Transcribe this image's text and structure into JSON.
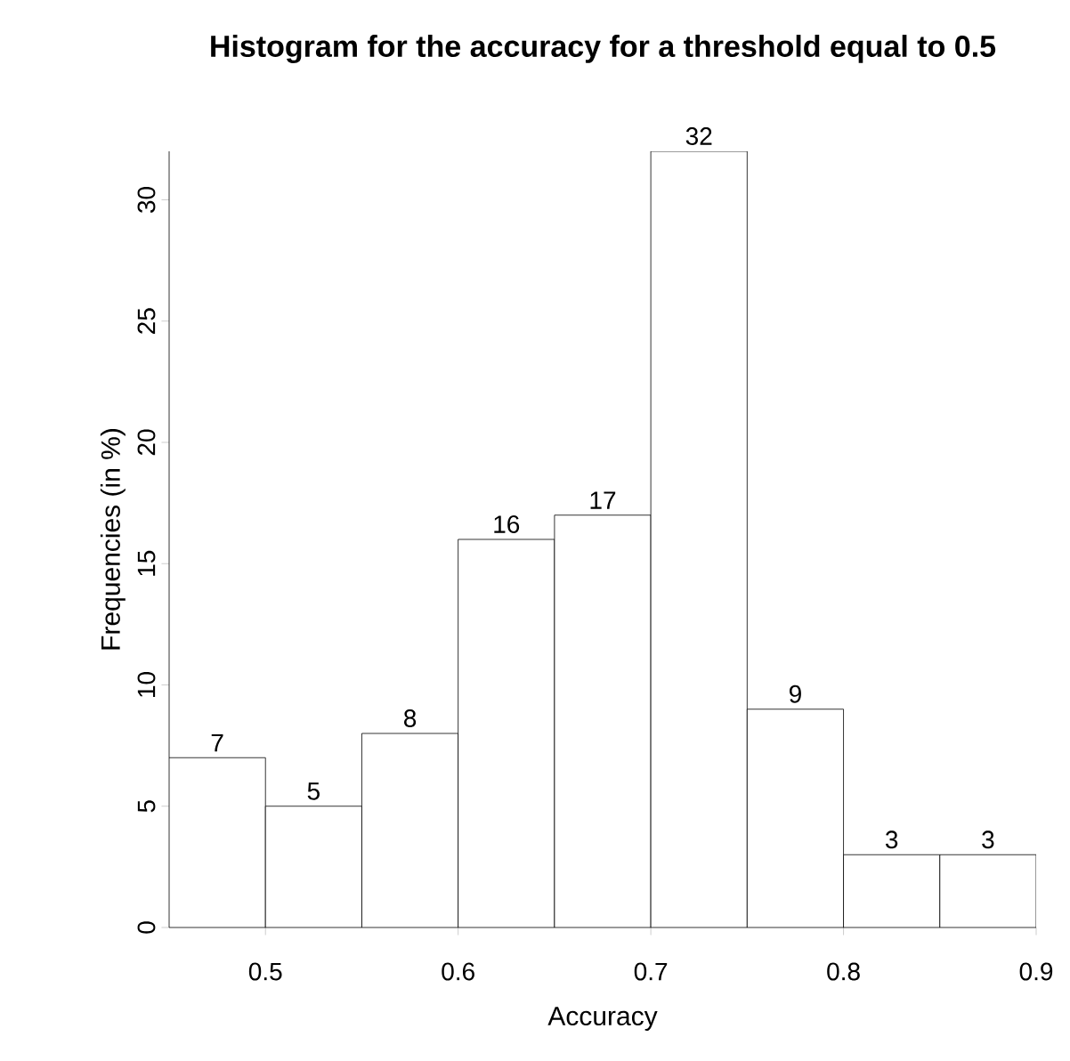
{
  "chart_data": {
    "type": "histogram",
    "title": "Histogram for the accuracy for a threshold equal to 0.5",
    "xlabel": "Accuracy",
    "ylabel": "Frequencies (in %)",
    "bins": [
      0.45,
      0.5,
      0.55,
      0.6,
      0.65,
      0.7,
      0.75,
      0.8,
      0.85,
      0.9
    ],
    "values": [
      7,
      5,
      8,
      16,
      17,
      32,
      9,
      3,
      3
    ],
    "color": "#ffffff",
    "data_labels": true,
    "grid": false,
    "xlim": [
      0.45,
      0.9
    ],
    "xticks": [
      0.5,
      0.6,
      0.7,
      0.8,
      0.9
    ],
    "ylim": [
      0,
      32
    ],
    "yticks": [
      0,
      5,
      10,
      15,
      20,
      25,
      30
    ]
  }
}
